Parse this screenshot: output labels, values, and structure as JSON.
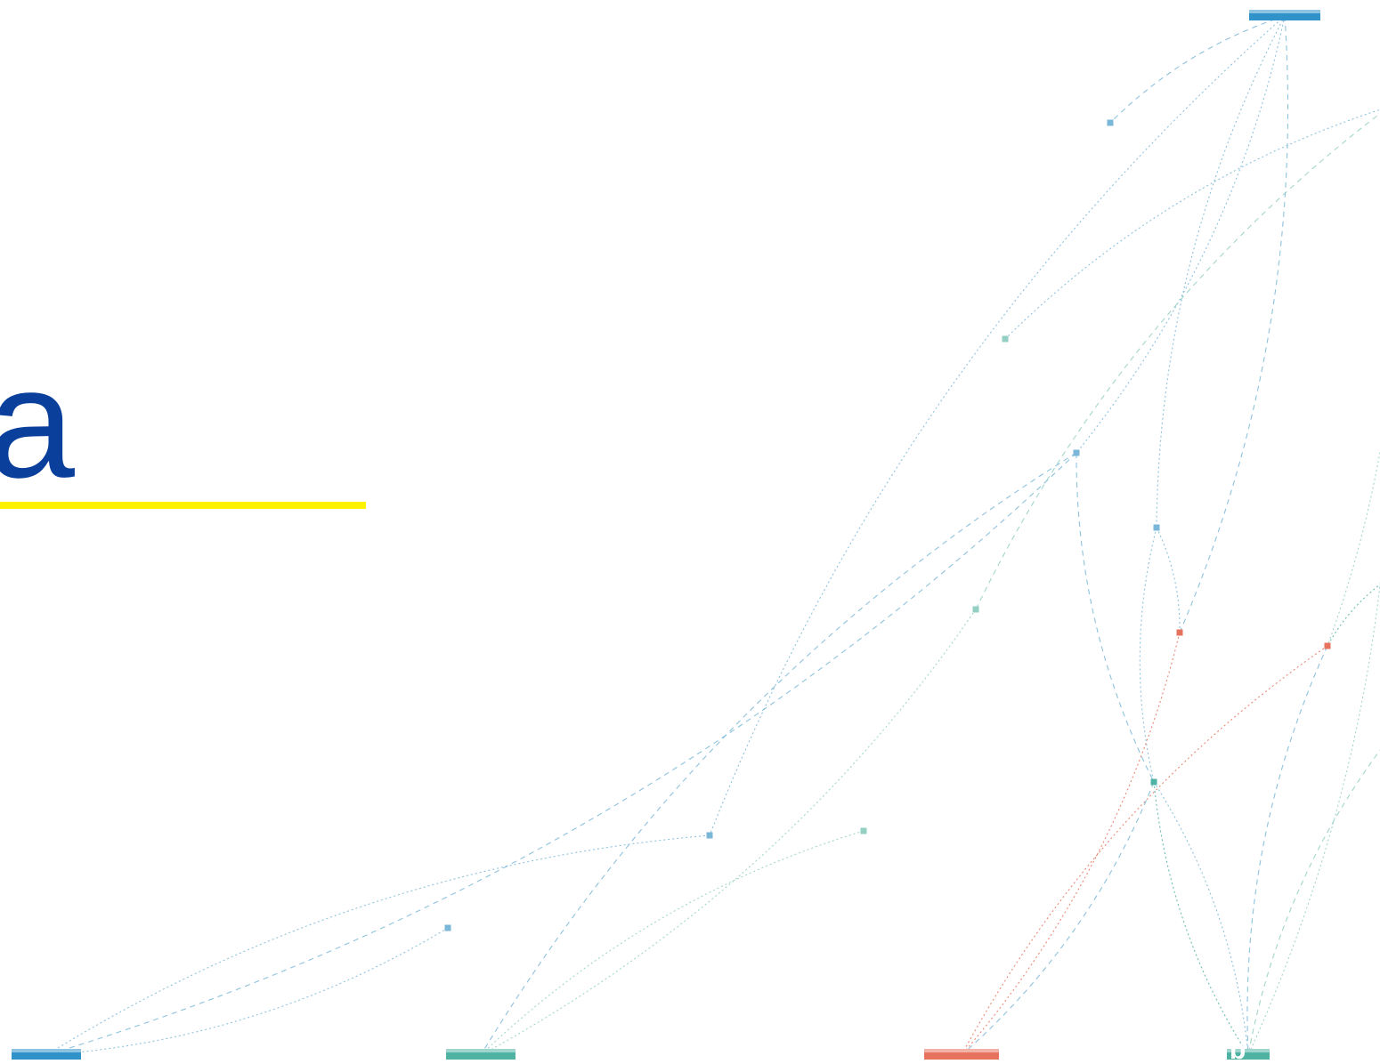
{
  "heading": {
    "text": "a"
  },
  "colors": {
    "heading": "#0a3f9c",
    "underline": "#fff200",
    "blue": "#2f93c9",
    "teal": "#4fb3a4",
    "coral": "#e7735f",
    "light_blue": "#7bb7d8",
    "light_teal": "#93cfc3"
  },
  "graph": {
    "label": "b",
    "nodes": [
      {
        "id": "top-bar",
        "kind": "bar",
        "color": "blue"
      },
      {
        "id": "bottom-bar-1",
        "kind": "bar",
        "color": "blue"
      },
      {
        "id": "bottom-bar-2",
        "kind": "bar",
        "color": "teal"
      },
      {
        "id": "bottom-bar-3",
        "kind": "bar",
        "color": "coral"
      },
      {
        "id": "bottom-bar-4",
        "kind": "bar",
        "color": "teal"
      },
      {
        "id": "n1",
        "kind": "dot",
        "color": "light_blue"
      },
      {
        "id": "n2",
        "kind": "dot",
        "color": "light_teal"
      },
      {
        "id": "n3",
        "kind": "dot",
        "color": "light_blue"
      },
      {
        "id": "n4",
        "kind": "dot",
        "color": "light_blue"
      },
      {
        "id": "n5",
        "kind": "dot",
        "color": "light_teal"
      },
      {
        "id": "n6",
        "kind": "dot",
        "color": "coral"
      },
      {
        "id": "n7",
        "kind": "dot",
        "color": "coral"
      },
      {
        "id": "n8",
        "kind": "dot",
        "color": "teal"
      },
      {
        "id": "n9",
        "kind": "dot",
        "color": "light_teal"
      },
      {
        "id": "n10",
        "kind": "dot",
        "color": "light_blue"
      },
      {
        "id": "n11",
        "kind": "dot",
        "color": "light_blue"
      }
    ],
    "edges": [
      {
        "from": "top-bar",
        "to": "n1",
        "color": "light_blue"
      },
      {
        "from": "top-bar",
        "to": "n3",
        "color": "light_blue"
      },
      {
        "from": "top-bar",
        "to": "n4",
        "color": "light_blue"
      },
      {
        "from": "top-bar",
        "to": "n6",
        "color": "light_blue"
      },
      {
        "from": "top-bar",
        "to": "n10",
        "color": "light_blue"
      },
      {
        "from": "n2",
        "to": "off-top-right",
        "color": "light_blue"
      },
      {
        "from": "n3",
        "to": "n8",
        "color": "light_blue"
      },
      {
        "from": "n4",
        "to": "n6",
        "color": "light_blue"
      },
      {
        "from": "n4",
        "to": "n8",
        "color": "light_blue"
      },
      {
        "from": "n5",
        "to": "off-top-right",
        "color": "light_teal"
      },
      {
        "from": "n8",
        "to": "bottom-bar-4",
        "color": "teal"
      },
      {
        "from": "n8",
        "to": "bottom-bar-4",
        "color": "light_blue"
      },
      {
        "from": "n7",
        "to": "bottom-bar-4",
        "color": "light_blue"
      },
      {
        "from": "n6",
        "to": "bottom-bar-3",
        "color": "coral"
      },
      {
        "from": "n7",
        "to": "bottom-bar-3",
        "color": "coral"
      },
      {
        "from": "n8",
        "to": "bottom-bar-3",
        "color": "light_blue"
      },
      {
        "from": "n9",
        "to": "bottom-bar-2",
        "color": "light_teal"
      },
      {
        "from": "n5",
        "to": "bottom-bar-2",
        "color": "light_teal"
      },
      {
        "from": "n3",
        "to": "bottom-bar-2",
        "color": "light_blue"
      },
      {
        "from": "n11",
        "to": "bottom-bar-1",
        "color": "light_blue"
      },
      {
        "from": "n10",
        "to": "bottom-bar-1",
        "color": "light_blue"
      },
      {
        "from": "n3",
        "to": "bottom-bar-1",
        "color": "light_blue"
      },
      {
        "from": "off-right-1",
        "to": "n7",
        "color": "teal"
      },
      {
        "from": "off-right-2",
        "to": "bottom-bar-4",
        "color": "light_teal"
      },
      {
        "from": "off-right-3",
        "to": "bottom-bar-4",
        "color": "light_teal"
      },
      {
        "from": "off-top-right",
        "to": "n7",
        "color": "light_teal"
      }
    ]
  }
}
